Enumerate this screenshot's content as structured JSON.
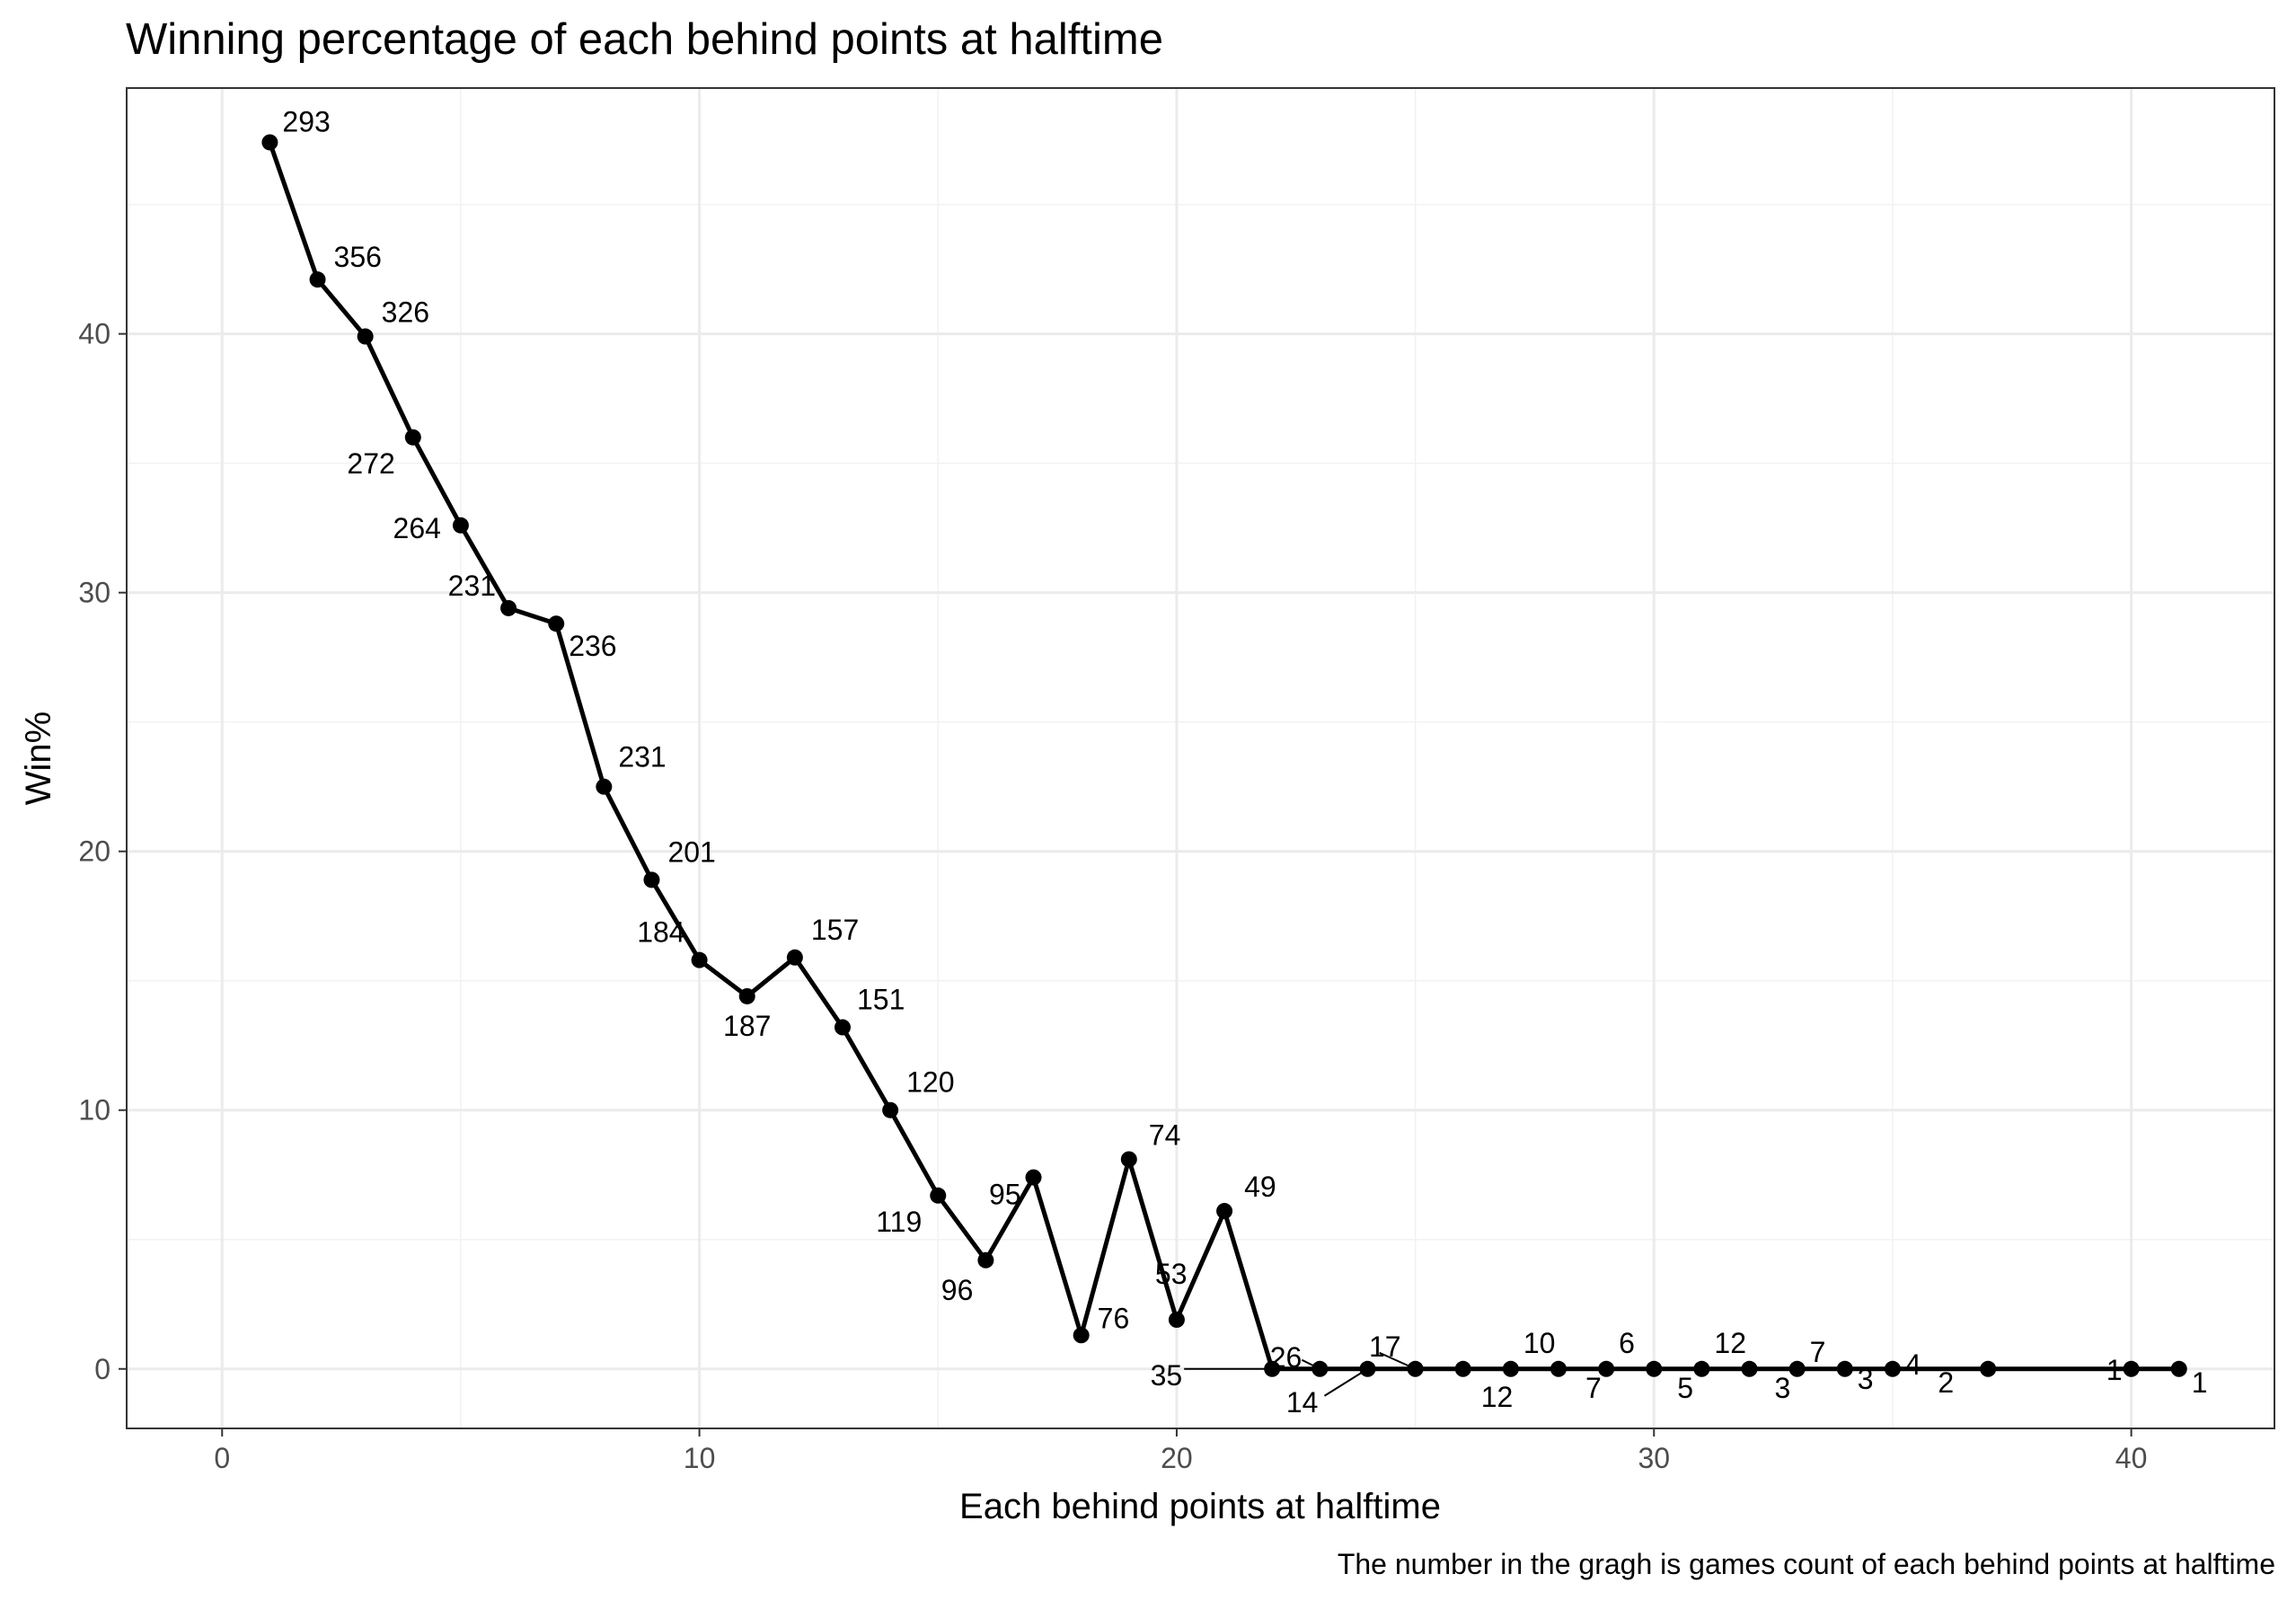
{
  "chart_data": {
    "type": "line",
    "title": "Winning percentage of each behind points at halftime",
    "xlabel": "Each behind points at halftime",
    "ylabel": "Win%",
    "caption": "The number in the gragh is games count of each behind points at halftime",
    "xlim": [
      -2,
      43
    ],
    "ylim": [
      -2.3,
      49.5
    ],
    "x_ticks": [
      0,
      10,
      20,
      30,
      40
    ],
    "y_ticks": [
      0,
      10,
      20,
      30,
      40
    ],
    "x_tick_labels": [
      "0",
      "10",
      "20",
      "30",
      "40"
    ],
    "y_tick_labels": [
      "0",
      "10",
      "20",
      "30",
      "40"
    ],
    "grid": true,
    "line_color": "#000000",
    "points": [
      {
        "x": 1,
        "y": 47.4,
        "label": "293"
      },
      {
        "x": 2,
        "y": 42.1,
        "label": "356"
      },
      {
        "x": 3,
        "y": 39.9,
        "label": "326"
      },
      {
        "x": 4,
        "y": 36.0,
        "label": "272"
      },
      {
        "x": 5,
        "y": 32.6,
        "label": "264"
      },
      {
        "x": 6,
        "y": 29.4,
        "label": "231"
      },
      {
        "x": 7,
        "y": 28.8,
        "label": "236"
      },
      {
        "x": 8,
        "y": 22.5,
        "label": "231"
      },
      {
        "x": 9,
        "y": 18.9,
        "label": "201"
      },
      {
        "x": 10,
        "y": 15.8,
        "label": "184"
      },
      {
        "x": 11,
        "y": 14.4,
        "label": "187"
      },
      {
        "x": 12,
        "y": 15.9,
        "label": "157"
      },
      {
        "x": 13,
        "y": 13.2,
        "label": "151"
      },
      {
        "x": 14,
        "y": 10.0,
        "label": "120"
      },
      {
        "x": 15,
        "y": 6.7,
        "label": "119"
      },
      {
        "x": 16,
        "y": 4.2,
        "label": "96"
      },
      {
        "x": 17,
        "y": 7.4,
        "label": "95"
      },
      {
        "x": 18,
        "y": 1.3,
        "label": "76"
      },
      {
        "x": 19,
        "y": 8.1,
        "label": "74"
      },
      {
        "x": 20,
        "y": 1.9,
        "label": "53"
      },
      {
        "x": 21,
        "y": 6.1,
        "label": "49"
      },
      {
        "x": 22,
        "y": 0.0,
        "label": "35"
      },
      {
        "x": 23,
        "y": 0.0,
        "label": "26"
      },
      {
        "x": 24,
        "y": 0.0,
        "label": "14"
      },
      {
        "x": 25,
        "y": 0.0,
        "label": "17"
      },
      {
        "x": 26,
        "y": 0.0,
        "label": "12"
      },
      {
        "x": 27,
        "y": 0.0,
        "label": "10"
      },
      {
        "x": 28,
        "y": 0.0,
        "label": "7"
      },
      {
        "x": 29,
        "y": 0.0,
        "label": "6"
      },
      {
        "x": 30,
        "y": 0.0,
        "label": "5"
      },
      {
        "x": 31,
        "y": 0.0,
        "label": "12"
      },
      {
        "x": 32,
        "y": 0.0,
        "label": "3"
      },
      {
        "x": 33,
        "y": 0.0,
        "label": "7"
      },
      {
        "x": 34,
        "y": 0.0,
        "label": "3"
      },
      {
        "x": 35,
        "y": 0.0,
        "label": "4"
      },
      {
        "x": 37,
        "y": 0.0,
        "label": "2"
      },
      {
        "x": 40,
        "y": 0.0,
        "label": "1"
      },
      {
        "x": 41,
        "y": 0.0,
        "label": "1"
      }
    ]
  }
}
